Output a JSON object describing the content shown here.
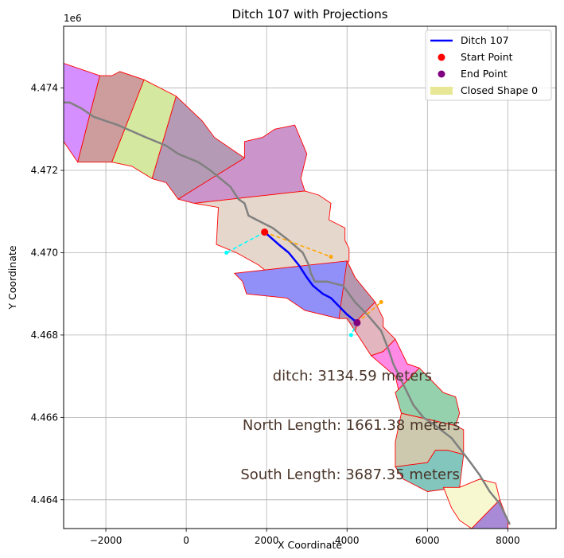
{
  "chart_data": {
    "type": "map",
    "title": "Ditch 107 with Projections",
    "xlabel": "X Coordinate",
    "ylabel": "Y Coordinate",
    "y_offset_label": "1e6",
    "xlim": [
      -3050,
      9200
    ],
    "ylim": [
      4.4633,
      4.4755
    ],
    "xticks": [
      -2000,
      0,
      2000,
      4000,
      6000,
      8000
    ],
    "xtick_labels": [
      "−2000",
      "0",
      "2000",
      "4000",
      "6000",
      "8000"
    ],
    "yticks": [
      4.464,
      4.466,
      4.468,
      4.47,
      4.472,
      4.474
    ],
    "ytick_labels": [
      "4.464",
      "4.466",
      "4.468",
      "4.470",
      "4.472",
      "4.474"
    ],
    "grid": true,
    "legend_position": "top-right",
    "legend": [
      {
        "label": "Ditch 107",
        "kind": "line",
        "color": "#0000ff"
      },
      {
        "label": "Start Point",
        "kind": "marker",
        "color": "#ff0000"
      },
      {
        "label": "End Point",
        "kind": "marker",
        "color": "#800080"
      },
      {
        "label": "Closed Shape 0",
        "kind": "patch",
        "color": "#e4e48a"
      }
    ],
    "polygons": [
      {
        "fill": "#d68fff",
        "points": [
          [
            -3050,
            4.4746
          ],
          [
            -2150,
            4.4743
          ],
          [
            -2700,
            4.4722
          ],
          [
            -3050,
            4.4727
          ]
        ]
      },
      {
        "fill": "#cd9d9d",
        "points": [
          [
            -2150,
            4.4743
          ],
          [
            -1850,
            4.4743
          ],
          [
            -1650,
            4.4744
          ],
          [
            -1050,
            4.4742
          ],
          [
            -1850,
            4.4722
          ],
          [
            -2700,
            4.4722
          ]
        ]
      },
      {
        "fill": "#d4e8a0",
        "points": [
          [
            -1050,
            4.4742
          ],
          [
            -250,
            4.4738
          ],
          [
            -850,
            4.4718
          ],
          [
            -1350,
            4.4721
          ],
          [
            -1850,
            4.4722
          ]
        ]
      },
      {
        "fill": "#b59ab5",
        "points": [
          [
            -250,
            4.4738
          ],
          [
            400,
            4.4732
          ],
          [
            700,
            4.4728
          ],
          [
            1450,
            4.4723
          ],
          [
            -200,
            4.4713
          ],
          [
            -500,
            4.4717
          ],
          [
            -850,
            4.4718
          ]
        ]
      },
      {
        "fill": "#cb94cb",
        "points": [
          [
            1450,
            4.4723
          ],
          [
            1450,
            4.4727
          ],
          [
            1900,
            4.4728
          ],
          [
            2200,
            4.473
          ],
          [
            2700,
            4.4731
          ],
          [
            3000,
            4.4724
          ],
          [
            2850,
            4.4718
          ],
          [
            2950,
            4.4715
          ],
          [
            200,
            4.4712
          ],
          [
            -200,
            4.4713
          ]
        ]
      },
      {
        "fill": "#e6d7cc",
        "points": [
          [
            200,
            4.4712
          ],
          [
            2950,
            4.4715
          ],
          [
            3300,
            4.4714
          ],
          [
            3600,
            4.4712
          ],
          [
            3550,
            4.4708
          ],
          [
            3950,
            4.4706
          ],
          [
            3950,
            4.4703
          ],
          [
            4050,
            4.4701
          ],
          [
            4050,
            4.4698
          ],
          [
            3700,
            4.4694
          ],
          [
            3900,
            4.4693
          ],
          [
            2700,
            4.469
          ],
          [
            1800,
            4.4697
          ],
          [
            1250,
            4.47
          ],
          [
            750,
            4.4702
          ],
          [
            800,
            4.4711
          ]
        ]
      },
      {
        "fill": "#9090f8",
        "points": [
          [
            1200,
            4.4695
          ],
          [
            4000,
            4.4698
          ],
          [
            4200,
            4.4694
          ],
          [
            3900,
            4.469
          ],
          [
            4000,
            4.4686
          ],
          [
            3800,
            4.4684
          ],
          [
            2950,
            4.4686
          ],
          [
            2500,
            4.4689
          ],
          [
            1500,
            4.469
          ],
          [
            1400,
            4.4693
          ]
        ]
      },
      {
        "fill": "#b598b0",
        "points": [
          [
            4000,
            4.4698
          ],
          [
            4200,
            4.4694
          ],
          [
            4700,
            4.4688
          ],
          [
            4300,
            4.4684
          ],
          [
            4200,
            4.4681
          ],
          [
            4000,
            4.4684
          ],
          [
            3800,
            4.4684
          ]
        ]
      },
      {
        "fill": "#e3b5be",
        "points": [
          [
            4700,
            4.4688
          ],
          [
            4900,
            4.4684
          ],
          [
            4900,
            4.4682
          ],
          [
            5200,
            4.4679
          ],
          [
            4900,
            4.4676
          ],
          [
            4600,
            4.4675
          ],
          [
            4200,
            4.4681
          ],
          [
            4300,
            4.4684
          ]
        ]
      },
      {
        "fill": "#ff8ae6",
        "points": [
          [
            4600,
            4.4675
          ],
          [
            4900,
            4.4676
          ],
          [
            5200,
            4.4679
          ],
          [
            5500,
            4.4673
          ],
          [
            5800,
            4.4672
          ],
          [
            5800,
            4.4666
          ],
          [
            5300,
            4.4666
          ],
          [
            5200,
            4.467
          ]
        ]
      },
      {
        "fill": "#95d1ad",
        "points": [
          [
            5800,
            4.4672
          ],
          [
            6400,
            4.4666
          ],
          [
            6700,
            4.4665
          ],
          [
            6800,
            4.4661
          ],
          [
            6700,
            4.4658
          ],
          [
            5350,
            4.4661
          ],
          [
            5200,
            4.4666
          ]
        ]
      },
      {
        "fill": "#ccc9ae",
        "points": [
          [
            5350,
            4.4661
          ],
          [
            6700,
            4.4658
          ],
          [
            6900,
            4.4657
          ],
          [
            6900,
            4.4651
          ],
          [
            6500,
            4.4652
          ],
          [
            6200,
            4.4652
          ],
          [
            6000,
            4.4649
          ],
          [
            5200,
            4.4648
          ],
          [
            5200,
            4.4654
          ]
        ]
      },
      {
        "fill": "#82c6be",
        "points": [
          [
            5200,
            4.4648
          ],
          [
            6000,
            4.4649
          ],
          [
            6200,
            4.4652
          ],
          [
            6500,
            4.4652
          ],
          [
            6900,
            4.4651
          ],
          [
            6800,
            4.4643
          ],
          [
            6000,
            4.4642
          ],
          [
            5400,
            4.4645
          ]
        ]
      },
      {
        "fill": "#f8f8d0",
        "points": [
          [
            6400,
            4.4643
          ],
          [
            6800,
            4.4643
          ],
          [
            7300,
            4.4645
          ],
          [
            7700,
            4.4644
          ],
          [
            7800,
            4.464
          ],
          [
            7100,
            4.4633
          ],
          [
            6800,
            4.4635
          ],
          [
            6600,
            4.4638
          ]
        ]
      },
      {
        "fill": "#a88ad6",
        "points": [
          [
            7800,
            4.464
          ],
          [
            8000,
            4.4635
          ],
          [
            8000,
            4.4633
          ],
          [
            7100,
            4.4633
          ]
        ]
      }
    ],
    "river_line": [
      [
        -3050,
        4.47365
      ],
      [
        -2900,
        4.47365
      ],
      [
        -2600,
        4.4735
      ],
      [
        -2300,
        4.4733
      ],
      [
        -1700,
        4.4731
      ],
      [
        -1000,
        4.4728
      ],
      [
        -500,
        4.4726
      ],
      [
        -200,
        4.4724
      ],
      [
        300,
        4.4722
      ],
      [
        600,
        4.472
      ],
      [
        850,
        4.4718
      ],
      [
        1100,
        4.4716
      ],
      [
        1300,
        4.4713
      ],
      [
        1450,
        4.4712
      ],
      [
        1550,
        4.4709
      ],
      [
        1750,
        4.4708
      ],
      [
        2150,
        4.4706
      ],
      [
        2550,
        4.4703
      ],
      [
        2900,
        4.47
      ],
      [
        3050,
        4.4697
      ],
      [
        3100,
        4.4695
      ],
      [
        3200,
        4.4693
      ],
      [
        3500,
        4.4693
      ],
      [
        3900,
        4.4692
      ],
      [
        4200,
        4.4688
      ],
      [
        4500,
        4.4685
      ],
      [
        4850,
        4.4681
      ],
      [
        5050,
        4.4676
      ],
      [
        5150,
        4.4673
      ],
      [
        5300,
        4.467
      ],
      [
        5450,
        4.4667
      ],
      [
        5650,
        4.4663
      ],
      [
        5900,
        4.466
      ],
      [
        6200,
        4.4658
      ],
      [
        6600,
        4.4655
      ],
      [
        7000,
        4.465
      ],
      [
        7300,
        4.4646
      ],
      [
        7550,
        4.4642
      ],
      [
        7800,
        4.4639
      ],
      [
        8050,
        4.4634
      ]
    ],
    "ditch_line": [
      [
        1950,
        4.4705
      ],
      [
        2300,
        4.4702
      ],
      [
        2550,
        4.47
      ],
      [
        2800,
        4.4697
      ],
      [
        3000,
        4.4694
      ],
      [
        3150,
        4.4692
      ],
      [
        3400,
        4.469
      ],
      [
        3600,
        4.4689
      ],
      [
        3800,
        4.4687
      ],
      [
        4000,
        4.4685
      ],
      [
        4250,
        4.4683
      ]
    ],
    "start_point": [
      1950,
      4.4705
    ],
    "end_point": [
      4250,
      4.4683
    ],
    "projections": [
      {
        "color": "#00ffff",
        "points": [
          [
            1950,
            4.4705
          ],
          [
            1000,
            4.47
          ]
        ]
      },
      {
        "color": "#ffa500",
        "points": [
          [
            1950,
            4.4705
          ],
          [
            3600,
            4.4699
          ]
        ]
      },
      {
        "color": "#00ffff",
        "points": [
          [
            4250,
            4.4683
          ],
          [
            4100,
            4.468
          ]
        ]
      },
      {
        "color": "#ffa500",
        "points": [
          [
            4250,
            4.4683
          ],
          [
            4850,
            4.4688
          ]
        ]
      }
    ],
    "annotations": [
      {
        "text": "ditch: 3134.59 meters",
        "x": 2150,
        "y": 4.4669
      },
      {
        "text": "North Length: 1661.38 meters",
        "x": 1400,
        "y": 4.4657
      },
      {
        "text": "South Length: 3687.35 meters",
        "x": 1350,
        "y": 4.4645
      }
    ]
  }
}
